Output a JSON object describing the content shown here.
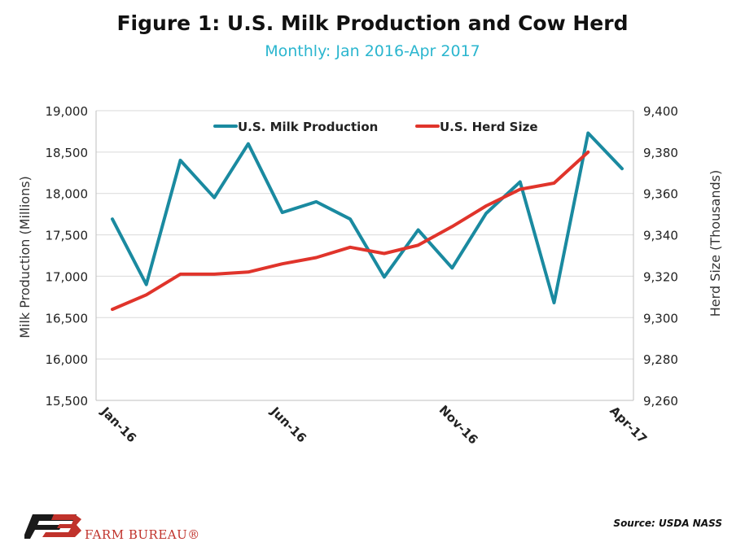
{
  "chart_data": {
    "type": "line",
    "title": "Figure 1: U.S. Milk Production and Cow Herd",
    "subtitle": "Monthly: Jan 2016-Apr 2017",
    "categories": [
      "Jan-16",
      "Feb-16",
      "Mar-16",
      "Apr-16",
      "May-16",
      "Jun-16",
      "Jul-16",
      "Aug-16",
      "Sep-16",
      "Oct-16",
      "Nov-16",
      "Dec-16",
      "Jan-17",
      "Feb-17",
      "Mar-17",
      "Apr-17"
    ],
    "tick_labels": [
      "Jan-16",
      "Jun-16",
      "Nov-16",
      "Apr-17"
    ],
    "y_left": {
      "label": "Milk Production (Millions)",
      "range": [
        15500,
        19000
      ],
      "ticks": [
        "15,500",
        "16,000",
        "16,500",
        "17,000",
        "17,500",
        "18,000",
        "18,500",
        "19,000"
      ]
    },
    "y_right": {
      "label": "Herd Size (Thousands)",
      "range": [
        9260,
        9400
      ],
      "ticks": [
        "9,260",
        "9,280",
        "9,300",
        "9,320",
        "9,340",
        "9,360",
        "9,380",
        "9,400"
      ]
    },
    "series": [
      {
        "name": "U.S. Milk Production",
        "axis": "left",
        "color": "#1a8aa0",
        "values": [
          17690,
          16900,
          18400,
          17950,
          18600,
          17770,
          17900,
          17690,
          16990,
          17560,
          17100,
          17760,
          18140,
          16680,
          18730,
          18300
        ]
      },
      {
        "name": "U.S. Herd Size",
        "axis": "right",
        "color": "#e0342b",
        "values": [
          9304,
          9311,
          9321,
          9321,
          9322,
          9326,
          9329,
          9334,
          9331,
          9335,
          9344,
          9354,
          9362,
          9365,
          9380,
          null
        ]
      }
    ],
    "grid": true,
    "legend": "top"
  },
  "footer": {
    "source": "Source: USDA NASS",
    "brand": "FARM BUREAU®"
  }
}
